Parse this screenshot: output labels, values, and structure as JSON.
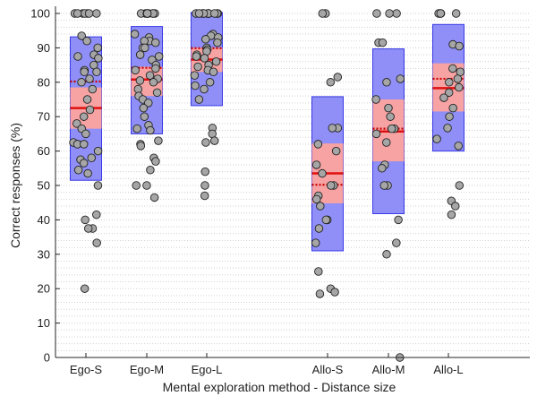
{
  "chart_data": {
    "type": "boxplot",
    "xlabel": "Mental exploration method - Distance size",
    "ylabel": "Correct responses (%)",
    "ylim": [
      0,
      100
    ],
    "yticks": [
      0,
      10,
      20,
      30,
      40,
      50,
      60,
      70,
      80,
      90,
      100
    ],
    "grid": "dotted",
    "categories": [
      "Ego-S",
      "Ego-M",
      "Ego-L",
      "Allo-S",
      "Allo-M",
      "Allo-L"
    ],
    "groups": [
      {
        "label": "Ego-S",
        "sd_range": [
          51.5,
          93.2
        ],
        "ci_range": [
          66.5,
          78.5
        ],
        "median": 72.5,
        "mean": 80.2,
        "points": [
          100,
          100,
          100,
          100,
          100,
          100,
          100,
          93.5,
          92,
          90,
          88,
          87.5,
          87,
          85,
          83.5,
          83,
          83,
          81,
          80,
          78,
          75,
          72,
          70,
          68,
          66.5,
          65,
          62.5,
          62,
          62,
          60,
          58,
          57.5,
          56.5,
          54.5,
          53.5,
          50,
          41.5,
          40,
          37.5,
          37.5,
          33.3,
          20
        ]
      },
      {
        "label": "Ego-M",
        "sd_range": [
          65,
          96.2
        ],
        "ci_range": [
          76,
          84.5
        ],
        "median": 80.8,
        "mean": 84.2,
        "points": [
          100,
          100,
          100,
          100,
          100,
          100,
          100,
          100,
          100,
          94,
          93,
          92,
          92,
          91.5,
          90,
          90,
          88,
          87.5,
          86.5,
          85,
          84,
          83.5,
          82,
          81,
          80.5,
          80,
          78,
          77,
          76,
          75,
          74,
          72.5,
          70,
          67.5,
          66.5,
          66,
          63,
          62,
          61.5,
          58,
          57,
          54.5,
          50,
          50,
          46.5
        ]
      },
      {
        "label": "Ego-L",
        "sd_range": [
          73.2,
          100.3
        ],
        "ci_range": [
          83,
          90
        ],
        "median": 86.6,
        "mean": 89.9,
        "points": [
          100,
          100,
          100,
          100,
          100,
          100,
          100,
          100,
          100,
          100,
          100,
          100,
          100,
          94,
          93.5,
          93,
          92.5,
          91.5,
          90,
          89.5,
          89,
          88,
          87.5,
          87,
          86,
          85,
          84.5,
          83.5,
          83,
          82,
          80,
          79,
          78,
          75,
          66.7,
          65,
          63,
          62.5,
          54,
          50,
          47
        ]
      },
      {
        "label": "Allo-S",
        "sd_range": [
          31,
          75.8
        ],
        "ci_range": [
          44.8,
          62.2
        ],
        "median": 53.5,
        "mean": 50.2,
        "points": [
          100,
          100,
          81.5,
          80,
          66.7,
          66.7,
          62,
          60,
          56,
          53.5,
          50,
          50,
          47,
          46,
          44,
          40,
          40,
          37.5,
          33.3,
          25,
          20,
          19,
          18.5
        ]
      },
      {
        "label": "Allo-M",
        "sd_range": [
          41.8,
          89.7
        ],
        "ci_range": [
          57,
          75
        ],
        "median": 65.7,
        "mean": 66.5,
        "points": [
          100,
          100,
          100,
          91.5,
          91.5,
          81,
          80,
          75,
          72.5,
          70,
          66.5,
          66.5,
          65,
          62.5,
          56,
          55,
          50,
          50,
          40,
          33.3,
          30,
          0
        ]
      },
      {
        "label": "Allo-L",
        "sd_range": [
          60,
          96.8
        ],
        "ci_range": [
          71.5,
          85.5
        ],
        "median": 78.3,
        "mean": 81,
        "points": [
          100,
          100,
          100,
          100,
          100,
          91,
          90.5,
          84,
          83,
          81,
          80,
          78.5,
          77,
          75.5,
          72.5,
          70,
          66.7,
          63.5,
          61.5,
          50,
          45.5,
          44,
          41.5
        ]
      }
    ],
    "colors": {
      "sd_fill": "#8f8ff7",
      "sd_edge": "#3a3ae6",
      "ci_fill": "#f7a3a3",
      "median_line": "#e01010",
      "mean_line": "#c80000",
      "point_fill": "#a6a6a6",
      "point_edge": "#222222",
      "grid": "#cfcfcf",
      "axis": "#262626"
    }
  }
}
